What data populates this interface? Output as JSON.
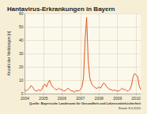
{
  "chart_data": {
    "type": "line",
    "title": "Hantavirus-Erkrankungen in Bayern",
    "y_label": "Anzahl der Meldungen [n]",
    "annotations": [
      "Quelle: Bayerische Landesamt für Gesundheit und Lebensmittelsicherheit",
      "Stand: 8.4.2010"
    ],
    "categories": [
      "2004",
      null,
      null,
      null,
      null,
      null,
      null,
      null,
      null,
      null,
      null,
      null,
      "2005",
      null,
      null,
      null,
      null,
      null,
      null,
      null,
      null,
      null,
      null,
      null,
      "2006",
      null,
      null,
      null,
      null,
      null,
      null,
      null,
      null,
      null,
      null,
      null,
      "2007",
      null,
      null,
      null,
      null,
      null,
      null,
      null,
      null,
      null,
      null,
      null,
      "2008",
      null,
      null,
      null,
      null,
      null,
      null,
      null,
      null,
      null,
      null,
      null,
      "2009",
      null,
      null,
      null,
      null,
      null,
      null,
      null,
      null,
      null,
      null,
      null,
      "2010",
      null,
      null,
      null
    ],
    "values": [
      3,
      2,
      3,
      4,
      6,
      5,
      3,
      2,
      2,
      3,
      2,
      3,
      6,
      7,
      5,
      8,
      10,
      7,
      5,
      4,
      3,
      3,
      4,
      3,
      3,
      2,
      2,
      3,
      4,
      3,
      2,
      2,
      1,
      2,
      2,
      2,
      3,
      5,
      12,
      40,
      57,
      25,
      12,
      8,
      6,
      5,
      4,
      4,
      5,
      4,
      6,
      8,
      7,
      5,
      4,
      3,
      3,
      2,
      3,
      2,
      2,
      2,
      3,
      4,
      3,
      3,
      2,
      2,
      3,
      6,
      12,
      15,
      14,
      13,
      6,
      3
    ],
    "color": "#e2571e",
    "ylim": [
      0,
      60
    ],
    "yticks": [
      0,
      10,
      20,
      30,
      40,
      50,
      60
    ],
    "grid": true
  }
}
